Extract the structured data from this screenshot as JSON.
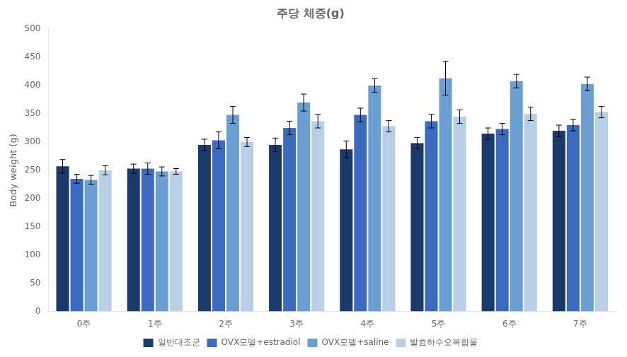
{
  "chart_data": {
    "type": "bar",
    "title": "주당 체중(g)",
    "ylabel": "Body weight (g)",
    "categories": [
      "0주",
      "1주",
      "2주",
      "3주",
      "4주",
      "5주",
      "6주",
      "7주"
    ],
    "series": [
      {
        "name": "일반대조군",
        "color": "#1a3a6b",
        "values": [
          257,
          253,
          295,
          295,
          287,
          298,
          315,
          320
        ],
        "errors": [
          12,
          8,
          10,
          12,
          15,
          10,
          10,
          10
        ]
      },
      {
        "name": "OVX모델+estradiol",
        "color": "#3a6bc0",
        "values": [
          235,
          253,
          303,
          325,
          348,
          337,
          323,
          330
        ],
        "errors": [
          8,
          10,
          15,
          12,
          12,
          12,
          10,
          10
        ]
      },
      {
        "name": "OVX모델+saline",
        "color": "#6a9fd4",
        "values": [
          233,
          248,
          348,
          370,
          400,
          413,
          408,
          403
        ],
        "errors": [
          8,
          8,
          15,
          15,
          12,
          30,
          12,
          12
        ]
      },
      {
        "name": "발효하수오복합물",
        "color": "#b8cfe8",
        "values": [
          250,
          248,
          300,
          337,
          328,
          345,
          350,
          353
        ],
        "errors": [
          8,
          5,
          8,
          12,
          10,
          12,
          12,
          10
        ]
      }
    ],
    "ylim": [
      0,
      500
    ],
    "yticks": [
      0,
      50,
      100,
      150,
      200,
      250,
      300,
      350,
      400,
      450,
      500
    ],
    "grid": false,
    "legend": "bottom"
  }
}
